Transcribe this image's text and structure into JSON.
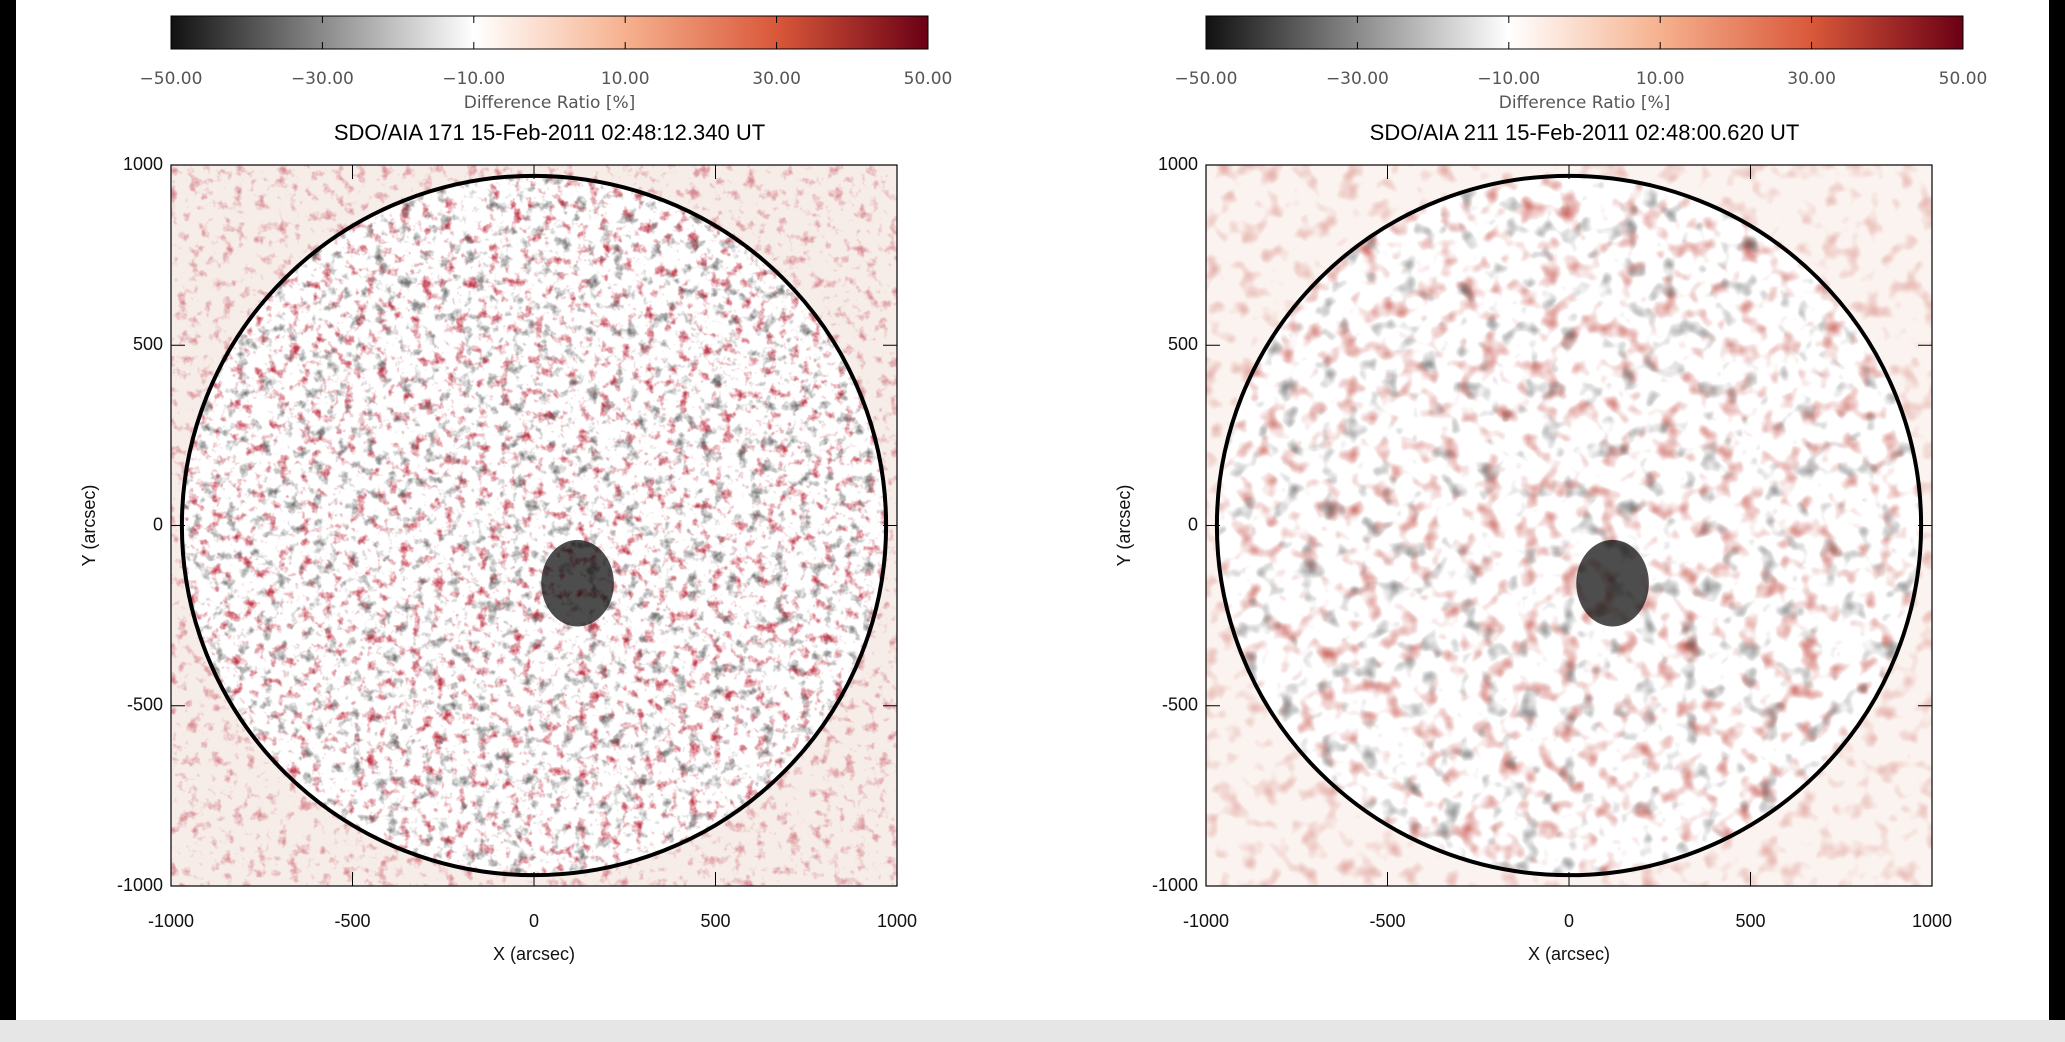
{
  "chart_data": [
    {
      "type": "image",
      "title": "SDO/AIA 171 15-Feb-2011 02:48:12.340 UT",
      "xlabel": "X (arcsec)",
      "ylabel": "Y (arcsec)",
      "xlim": [
        -1000,
        1000
      ],
      "ylim": [
        -1000,
        1000
      ],
      "xticks": [
        -1000,
        -500,
        0,
        500,
        1000
      ],
      "yticks": [
        -1000,
        -500,
        0,
        500,
        1000
      ],
      "colorbar": {
        "label": "Difference Ratio [%]",
        "lim": [
          -50,
          50
        ],
        "ticks": [
          {
            "value": -50,
            "label": "−50.00"
          },
          {
            "value": -30,
            "label": "−30.00"
          },
          {
            "value": -10,
            "label": "−10.00"
          },
          {
            "value": 10,
            "label": "10.00"
          },
          {
            "value": 30,
            "label": "30.00"
          },
          {
            "value": 50,
            "label": "50.00"
          }
        ],
        "colormap": [
          "#111111",
          "#8a8a8a",
          "#ffffff",
          "#f6b18e",
          "#d9583a",
          "#6b0015"
        ]
      }
    },
    {
      "type": "image",
      "title": "SDO/AIA 211 15-Feb-2011 02:48:00.620 UT",
      "xlabel": "X (arcsec)",
      "ylabel": "Y (arcsec)",
      "xlim": [
        -1000,
        1000
      ],
      "ylim": [
        -1000,
        1000
      ],
      "xticks": [
        -1000,
        -500,
        0,
        500,
        1000
      ],
      "yticks": [
        -1000,
        -500,
        0,
        500,
        1000
      ],
      "colorbar": {
        "label": "Difference Ratio [%]",
        "lim": [
          -50,
          50
        ],
        "ticks": [
          {
            "value": -50,
            "label": "−50.00"
          },
          {
            "value": -30,
            "label": "−30.00"
          },
          {
            "value": -10,
            "label": "−10.00"
          },
          {
            "value": 10,
            "label": "10.00"
          },
          {
            "value": 30,
            "label": "30.00"
          },
          {
            "value": 50,
            "label": "50.00"
          }
        ],
        "colormap": [
          "#111111",
          "#8a8a8a",
          "#ffffff",
          "#f6b18e",
          "#d9583a",
          "#6b0015"
        ]
      }
    }
  ]
}
